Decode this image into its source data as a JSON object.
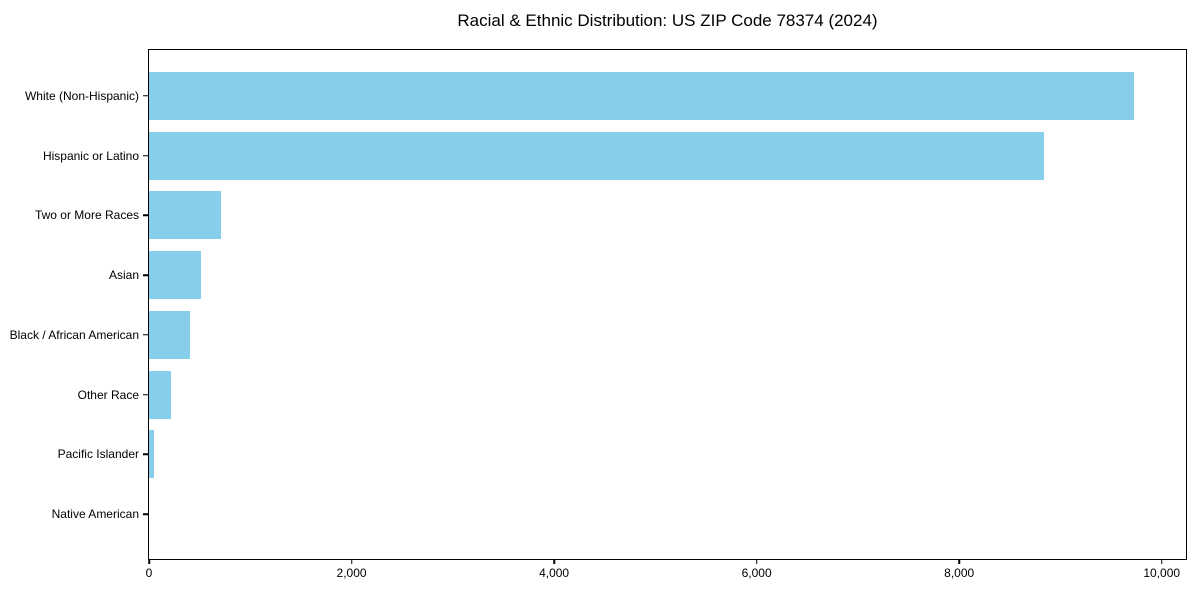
{
  "title": "Racial & Ethnic Distribution: US ZIP Code 78374 (2024)",
  "colors": {
    "bar": "#87CEEB",
    "axis": "#000000",
    "background": "#FFFFFF",
    "text": "#000000"
  },
  "chart_data": {
    "type": "bar",
    "orientation": "horizontal",
    "title": "Racial & Ethnic Distribution: US ZIP Code 78374 (2024)",
    "categories": [
      "White (Non-Hispanic)",
      "Hispanic or Latino",
      "Two or More Races",
      "Asian",
      "Black / African American",
      "Other Race",
      "Pacific Islander",
      "Native American"
    ],
    "values": [
      9730,
      8840,
      710,
      510,
      400,
      220,
      50,
      0
    ],
    "xlabel": "",
    "ylabel": "",
    "xlim": [
      0,
      10240
    ],
    "xticks": [
      0,
      2000,
      4000,
      6000,
      8000,
      10000
    ],
    "xtick_labels": [
      "0",
      "2,000",
      "4,000",
      "6,000",
      "8,000",
      "10,000"
    ],
    "grid": false,
    "legend_position": "none",
    "bar_color": "#87CEEB"
  }
}
